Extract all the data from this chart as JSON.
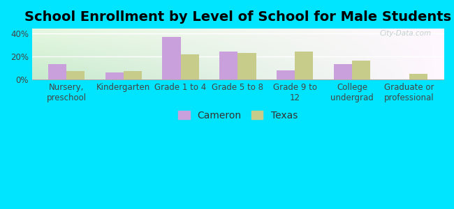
{
  "title": "School Enrollment by Level of School for Male Students",
  "categories": [
    "Nursery,\npreschool",
    "Kindergarten",
    "Grade 1 to 4",
    "Grade 5 to 8",
    "Grade 9 to\n12",
    "College\nundergrad",
    "Graduate or\nprofessional"
  ],
  "cameron_values": [
    13,
    6,
    37,
    24,
    8,
    13,
    0
  ],
  "texas_values": [
    7,
    7,
    22,
    23,
    24,
    16,
    5
  ],
  "cameron_color": "#c9a0dc",
  "texas_color": "#c8cc8a",
  "ylim": [
    0,
    44
  ],
  "yticks": [
    0,
    20,
    40
  ],
  "ytick_labels": [
    "0%",
    "20%",
    "40%"
  ],
  "legend_labels": [
    "Cameron",
    "Texas"
  ],
  "background_color": "#00e5ff",
  "bar_width": 0.32,
  "title_fontsize": 14,
  "tick_fontsize": 8.5,
  "legend_fontsize": 10,
  "watermark": "City-Data.com"
}
